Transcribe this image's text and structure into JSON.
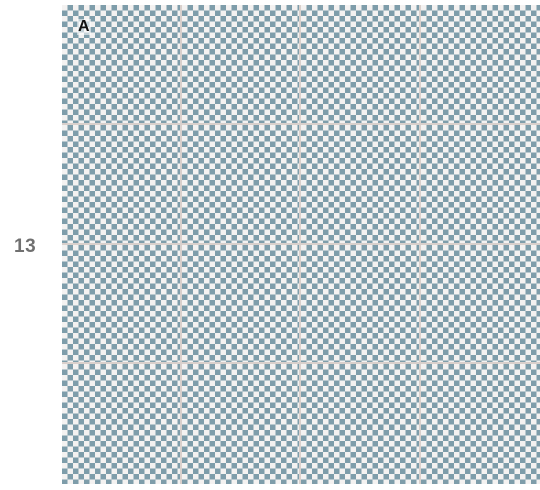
{
  "row_label": "13",
  "panel_label": "A",
  "tile_pattern": {
    "name": "blue-diamond-checker",
    "primary_color": "#7e9daa",
    "background_color": "#f4f2f1",
    "grout_color": "#d9d0cc",
    "columns": 4,
    "rows": 4
  }
}
